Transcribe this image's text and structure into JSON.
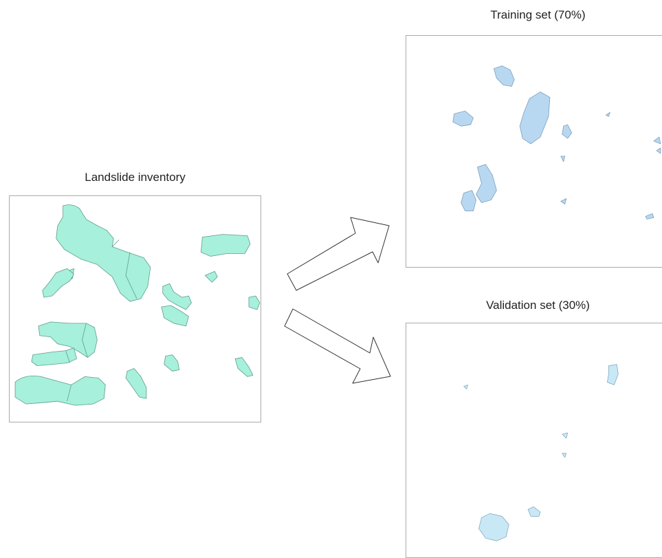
{
  "panels": {
    "inventory": {
      "title": "Landslide inventory"
    },
    "training": {
      "title": "Training set (70%)"
    },
    "validation": {
      "title": "Validation set (30%)"
    }
  },
  "colors": {
    "inventory_fill": "#a6f0dc",
    "inventory_stroke": "#5f9c8c",
    "training_fill": "#b8d8f2",
    "training_stroke": "#6f93b3",
    "validation_fill": "#c8e8f5",
    "validation_stroke": "#7aa2b8",
    "frame_border": "#a9a9a9",
    "arrow_stroke": "#333333"
  }
}
